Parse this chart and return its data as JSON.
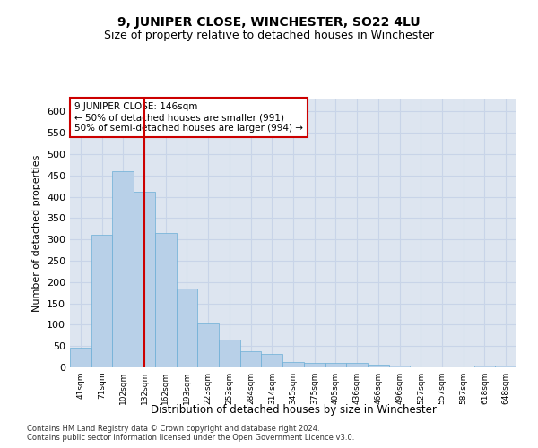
{
  "title": "9, JUNIPER CLOSE, WINCHESTER, SO22 4LU",
  "subtitle": "Size of property relative to detached houses in Winchester",
  "xlabel": "Distribution of detached houses by size in Winchester",
  "ylabel": "Number of detached properties",
  "categories": [
    "41sqm",
    "71sqm",
    "102sqm",
    "132sqm",
    "162sqm",
    "193sqm",
    "223sqm",
    "253sqm",
    "284sqm",
    "314sqm",
    "345sqm",
    "375sqm",
    "405sqm",
    "436sqm",
    "466sqm",
    "496sqm",
    "527sqm",
    "557sqm",
    "587sqm",
    "618sqm",
    "648sqm"
  ],
  "values": [
    47,
    310,
    460,
    412,
    315,
    184,
    103,
    65,
    38,
    31,
    13,
    11,
    11,
    11,
    7,
    4,
    1,
    0,
    0,
    4,
    4
  ],
  "bar_color": "#b8d0e8",
  "bar_edge_color": "#6baed6",
  "vline_x_index": 3.0,
  "vline_color": "#cc0000",
  "annotation_text": "9 JUNIPER CLOSE: 146sqm\n← 50% of detached houses are smaller (991)\n50% of semi-detached houses are larger (994) →",
  "annotation_box_color": "#ffffff",
  "annotation_box_edge": "#cc0000",
  "ylim": [
    0,
    630
  ],
  "yticks": [
    0,
    50,
    100,
    150,
    200,
    250,
    300,
    350,
    400,
    450,
    500,
    550,
    600
  ],
  "grid_color": "#c8d4e8",
  "background_color": "#dde5f0",
  "footer_line1": "Contains HM Land Registry data © Crown copyright and database right 2024.",
  "footer_line2": "Contains public sector information licensed under the Open Government Licence v3.0.",
  "title_fontsize": 10,
  "subtitle_fontsize": 9
}
